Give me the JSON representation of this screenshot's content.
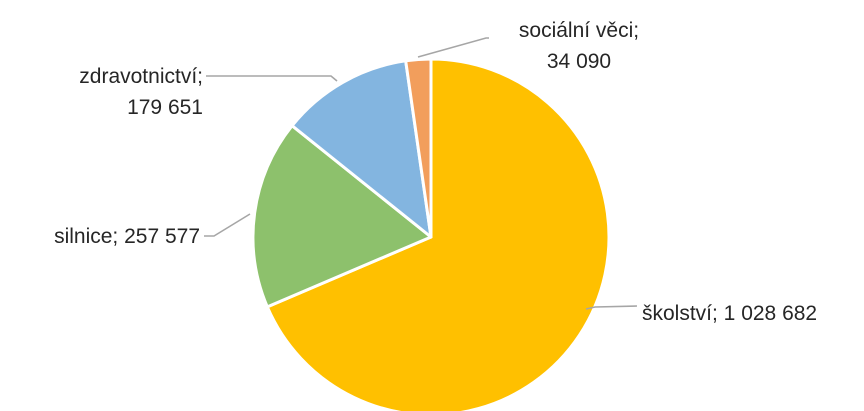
{
  "chart_data": {
    "type": "pie",
    "title": "",
    "start_angle_deg": 0,
    "direction": "clockwise",
    "legend": "none",
    "slices": [
      {
        "category": "školství",
        "value": 1028682,
        "label": [
          "školství; 1 028 682"
        ],
        "color": "#FFC000"
      },
      {
        "category": "silnice",
        "value": 257577,
        "label": [
          "silnice; 257 577"
        ],
        "color": "#8DC16C"
      },
      {
        "category": "zdravotnictví",
        "value": 179651,
        "label": [
          "zdravotnictví;",
          "179 651"
        ],
        "color": "#83B5E0"
      },
      {
        "category": "sociální věci",
        "value": 34090,
        "label": [
          "sociální věci;",
          "34 090"
        ],
        "color": "#F29E5C"
      }
    ]
  }
}
